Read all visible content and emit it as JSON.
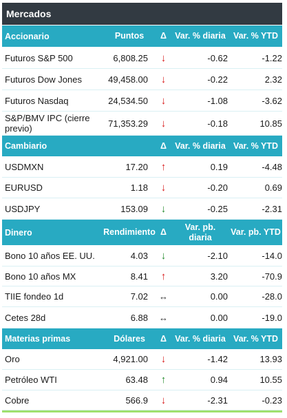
{
  "title": "Mercados",
  "colors": {
    "header": "#28aac2",
    "title_bar": "#323a42",
    "down": "#d81a1a",
    "up_green": "#238a2b",
    "bottom_line": "#9fe06e"
  },
  "sections": [
    {
      "headers": [
        "Accionario",
        "Puntos",
        "Δ",
        "Var. % diaria",
        "Var. % YTD"
      ],
      "rows": [
        {
          "name": "Futuros S&P 500",
          "value": "6,808.25",
          "arrow": "↓",
          "arrow_icon": "arrow-down-red-icon",
          "daily": "-0.62",
          "ytd": "-1.22"
        },
        {
          "name": "Futuros Dow Jones",
          "value": "49,458.00",
          "arrow": "↓",
          "arrow_icon": "arrow-down-red-icon",
          "daily": "-0.22",
          "ytd": "2.32"
        },
        {
          "name": "Futuros Nasdaq",
          "value": "24,534.50",
          "arrow": "↓",
          "arrow_icon": "arrow-down-red-icon",
          "daily": "-1.08",
          "ytd": "-3.62"
        },
        {
          "name": "S&P/BMV IPC (cierre previo)",
          "value": "71,353.29",
          "arrow": "↓",
          "arrow_icon": "arrow-down-red-icon",
          "daily": "-0.18",
          "ytd": "10.85"
        }
      ]
    },
    {
      "headers": [
        "Cambiario",
        "",
        "Δ",
        "Var. % diaria",
        "Var. % YTD"
      ],
      "rows": [
        {
          "name": "USDMXN",
          "value": "17.20",
          "arrow": "↑",
          "arrow_icon": "arrow-up-red-icon",
          "daily": "0.19",
          "ytd": "-4.48"
        },
        {
          "name": "EURUSD",
          "value": "1.18",
          "arrow": "↓",
          "arrow_icon": "arrow-down-red-icon",
          "daily": "-0.20",
          "ytd": "0.69"
        },
        {
          "name": "USDJPY",
          "value": "153.09",
          "arrow": "↓",
          "arrow_icon": "arrow-down-green-icon",
          "daily": "-0.25",
          "ytd": "-2.31"
        }
      ]
    },
    {
      "headers": [
        "Dinero",
        "Rendimiento",
        "Δ",
        "Var. pb. diaria",
        "Var. pb. YTD"
      ],
      "rows": [
        {
          "name": "Bono 10 años EE. UU.",
          "value": "4.03",
          "arrow": "↓",
          "arrow_icon": "arrow-down-green-icon",
          "daily": "-2.10",
          "ytd": "-14.0"
        },
        {
          "name": "Bono 10 años MX",
          "value": "8.41",
          "arrow": "↑",
          "arrow_icon": "arrow-up-red-icon",
          "daily": "3.20",
          "ytd": "-70.9"
        },
        {
          "name": "TIIE fondeo 1d",
          "value": "7.02",
          "arrow": "↔",
          "arrow_icon": "arrow-left-right-icon",
          "daily": "0.00",
          "ytd": "-28.0"
        },
        {
          "name": "Cetes 28d",
          "value": "6.88",
          "arrow": "↔",
          "arrow_icon": "arrow-left-right-icon",
          "daily": "0.00",
          "ytd": "-19.0"
        }
      ]
    },
    {
      "headers": [
        "Materias primas",
        "Dólares",
        "Δ",
        "Var. % diaria",
        "Var. % YTD"
      ],
      "rows": [
        {
          "name": "Oro",
          "value": "4,921.00",
          "arrow": "↓",
          "arrow_icon": "arrow-down-red-icon",
          "daily": "-1.42",
          "ytd": "13.93"
        },
        {
          "name": "Petróleo WTI",
          "value": "63.48",
          "arrow": "↑",
          "arrow_icon": "arrow-up-green-icon",
          "daily": "0.94",
          "ytd": "10.55"
        },
        {
          "name": "Cobre",
          "value": "566.9",
          "arrow": "↓",
          "arrow_icon": "arrow-down-red-icon",
          "daily": "-2.31",
          "ytd": "-0.23"
        }
      ]
    }
  ]
}
